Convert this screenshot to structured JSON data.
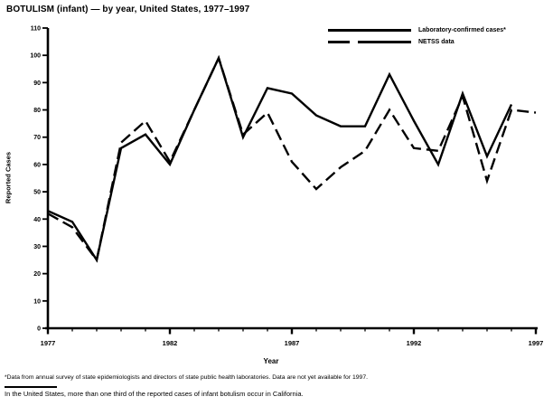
{
  "title": "BOTULISM (infant) — by year, United States, 1977–1997",
  "colors": {
    "line": "#000000",
    "background": "#ffffff"
  },
  "footnotes": {
    "line1": "*Data from annual survey of state epidemiologists and directors of state public health laboratories. Data are not yet available for 1997.",
    "line2": "In the United States, more than one third of the reported cases of infant botulism occur in California."
  },
  "chart_data": {
    "type": "line",
    "title": "BOTULISM (infant) — by year, United States, 1977–1997",
    "xlabel": "Year",
    "ylabel": "Reported Cases",
    "xlim": [
      1977,
      1997
    ],
    "ylim": [
      0,
      110
    ],
    "grid": false,
    "legend_position": "top-right",
    "y_ticks": [
      0,
      10,
      20,
      30,
      40,
      50,
      60,
      70,
      80,
      90,
      100,
      110
    ],
    "x_major_ticks": [
      1977,
      1982,
      1987,
      1992,
      1997
    ],
    "x_minor_step": 1,
    "x": [
      1977,
      1978,
      1979,
      1980,
      1981,
      1982,
      1983,
      1984,
      1985,
      1986,
      1987,
      1988,
      1989,
      1990,
      1991,
      1992,
      1993,
      1994,
      1995,
      1996,
      1997
    ],
    "series": [
      {
        "name": "Laboratory-confirmed cases*",
        "style": "solid",
        "values": [
          43,
          39,
          25,
          66,
          71,
          60,
          80,
          99,
          70,
          88,
          86,
          78,
          74,
          74,
          93,
          76,
          60,
          86,
          63,
          82,
          null
        ]
      },
      {
        "name": "NETSS data",
        "style": "dashed",
        "values": [
          42,
          37,
          25,
          68,
          76,
          61,
          80,
          99,
          71,
          79,
          61,
          51,
          59,
          65,
          80,
          66,
          65,
          85,
          54,
          80,
          79
        ]
      }
    ]
  }
}
